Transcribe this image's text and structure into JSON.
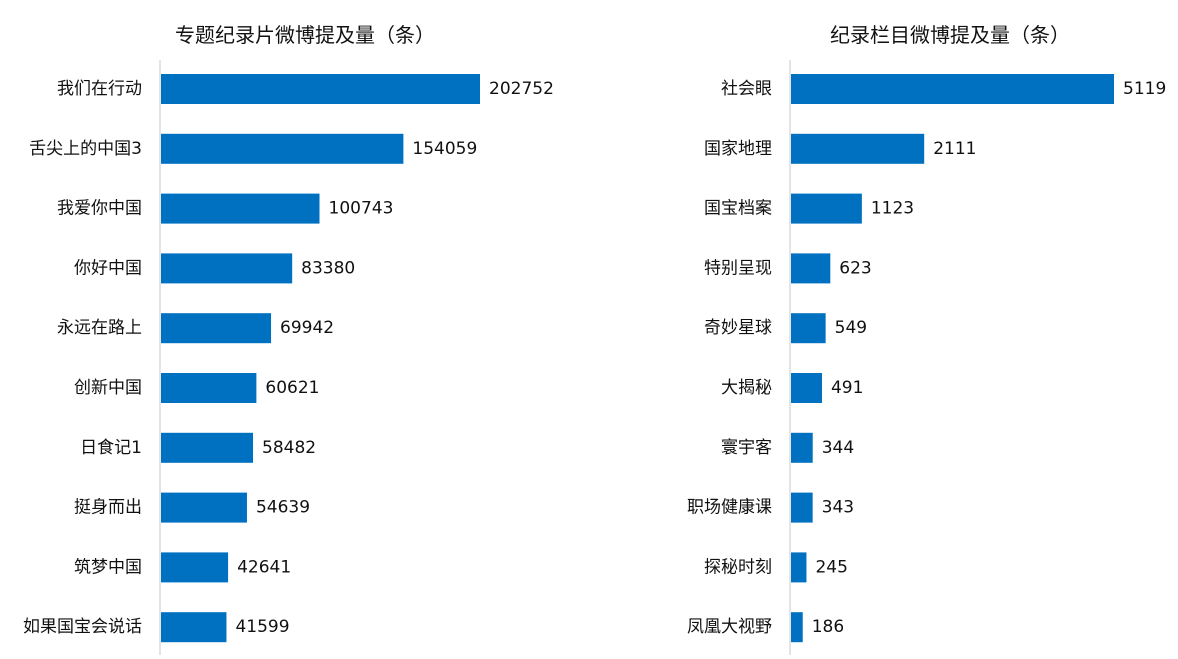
{
  "chart_data": [
    {
      "type": "bar",
      "orientation": "horizontal",
      "title": "专题纪录片微博提及量（条）",
      "categories": [
        "我们在行动",
        "舌尖上的中国3",
        "我爱你中国",
        "你好中国",
        "永远在路上",
        "创新中国",
        "日食记1",
        "挺身而出",
        "筑梦中国",
        "如果国宝会说话"
      ],
      "values": [
        202752,
        154059,
        100743,
        83380,
        69942,
        60621,
        58482,
        54639,
        42641,
        41599
      ],
      "value_labels": [
        "202752",
        "154059",
        "100743",
        "83380",
        "69942",
        "60621",
        "58482",
        "54639",
        "42641",
        "41599"
      ],
      "xlim": [
        0,
        240000
      ],
      "color": "#0070C0",
      "grid": false,
      "legend": "none"
    },
    {
      "type": "bar",
      "orientation": "horizontal",
      "title": "纪录栏目微博提及量（条）",
      "categories": [
        "社会眼",
        "国家地理",
        "国宝档案",
        "特别呈现",
        "奇妙星球",
        "大揭秘",
        "寰宇客",
        "职场健康课",
        "探秘时刻",
        "凤凰大视野"
      ],
      "values": [
        5119,
        2111,
        1123,
        623,
        549,
        491,
        344,
        343,
        245,
        186
      ],
      "value_labels": [
        "5119",
        "2111",
        "1123",
        "623",
        "549",
        "491",
        "344",
        "343",
        "245",
        "186"
      ],
      "xlim": [
        0,
        5500
      ],
      "color": "#0070C0",
      "grid": false,
      "legend": "none"
    }
  ]
}
